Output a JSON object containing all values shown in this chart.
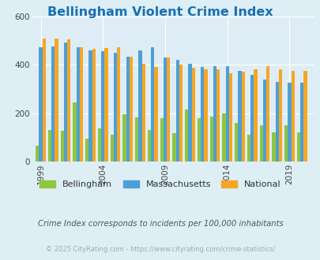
{
  "title": "Bellingham Violent Crime Index",
  "title_color": "#1a6faf",
  "subtitle": "Crime Index corresponds to incidents per 100,000 inhabitants",
  "subtitle_color": "#555555",
  "copyright": "© 2025 CityRating.com - https://www.cityrating.com/crime-statistics/",
  "copyright_color": "#aaaaaa",
  "years": [
    1999,
    2000,
    2001,
    2002,
    2003,
    2004,
    2005,
    2006,
    2007,
    2008,
    2009,
    2010,
    2011,
    2012,
    2013,
    2014,
    2015,
    2016,
    2017,
    2018,
    2019,
    2020
  ],
  "bellingham": [
    65,
    130,
    125,
    245,
    93,
    135,
    110,
    195,
    182,
    130,
    180,
    115,
    215,
    178,
    185,
    200,
    160,
    110,
    148,
    120,
    148,
    120
  ],
  "massachusetts": [
    475,
    478,
    493,
    475,
    462,
    458,
    450,
    435,
    460,
    475,
    430,
    420,
    405,
    392,
    394,
    394,
    377,
    360,
    340,
    328,
    325,
    325
  ],
  "national": [
    510,
    510,
    505,
    475,
    468,
    470,
    475,
    435,
    405,
    393,
    430,
    402,
    388,
    383,
    383,
    365,
    373,
    382,
    395,
    382,
    377,
    377
  ],
  "bellingham_color": "#8dc63f",
  "massachusetts_color": "#4d9fd6",
  "national_color": "#f5a623",
  "ylim": [
    0,
    600
  ],
  "yticks": [
    0,
    200,
    400,
    600
  ],
  "background_color": "#ddeef5",
  "plot_bg": "#deedf5",
  "bar_width": 0.27,
  "grid_color": "#ffffff",
  "xtick_years": [
    1999,
    2004,
    2009,
    2014,
    2019
  ]
}
